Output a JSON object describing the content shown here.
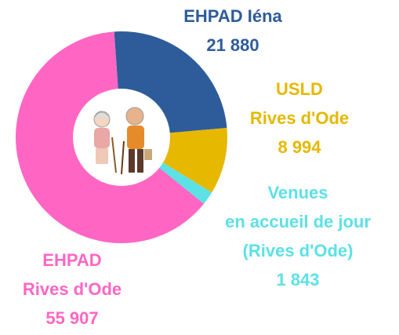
{
  "chart_data": {
    "type": "donut",
    "series": [
      {
        "name": "EHPAD Iéna",
        "color": "#2e5c9a",
        "values": [
          21880
        ],
        "value_labels": [
          "21 880"
        ]
      },
      {
        "name": "USLD\nRives d'Ode",
        "color": "#e6b800",
        "values": [
          8994
        ],
        "value_labels": [
          "8 994"
        ]
      },
      {
        "name": "Venues\nen accueil de jour\n(Rives d'Ode)",
        "color": "#5ce1e6",
        "values": [
          1843
        ],
        "value_labels": [
          "1 843"
        ]
      },
      {
        "name": "EHPAD\nRives d'Ode",
        "color": "#ff66c4",
        "values": [
          55907
        ],
        "value_labels": [
          "55 907"
        ]
      }
    ]
  }
}
